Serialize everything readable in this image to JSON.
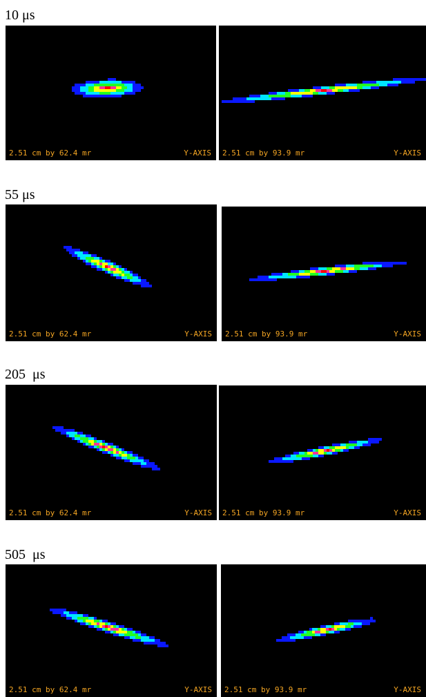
{
  "caption_color": "#f5a623",
  "palette": [
    "#0a18ff",
    "#00e5ff",
    "#22ff22",
    "#ffff00",
    "#ff3399",
    "#ff0000"
  ],
  "rows": [
    {
      "time_label": "10 μs",
      "panels": [
        {
          "caption_left": "2.51 cm by 62.4 mr",
          "caption_right": "Y-AXIS"
        },
        {
          "caption_left": "2.51 cm by 93.9 mr",
          "caption_right": "Y-AXIS"
        }
      ]
    },
    {
      "time_label": "55 μs",
      "panels": [
        {
          "caption_left": "2.51 cm by 62.4 mr",
          "caption_right": "Y-AXIS"
        },
        {
          "caption_left": "2.51 cm by 93.9 mr",
          "caption_right": "Y-AXIS"
        }
      ]
    },
    {
      "time_label": "205  μs",
      "panels": [
        {
          "caption_left": "2.51 cm by 62.4 mr",
          "caption_right": "Y-AXIS"
        },
        {
          "caption_left": "2.51 cm by 93.9 mr",
          "caption_right": "Y-AXIS"
        }
      ]
    },
    {
      "time_label": "505  μs",
      "panels": [
        {
          "caption_left": "2.51 cm by 62.4 mr",
          "caption_right": "Y-AXIS"
        },
        {
          "caption_left": "2.51 cm by 93.9 mr",
          "caption_right": "Y-AXIS"
        }
      ]
    }
  ]
}
